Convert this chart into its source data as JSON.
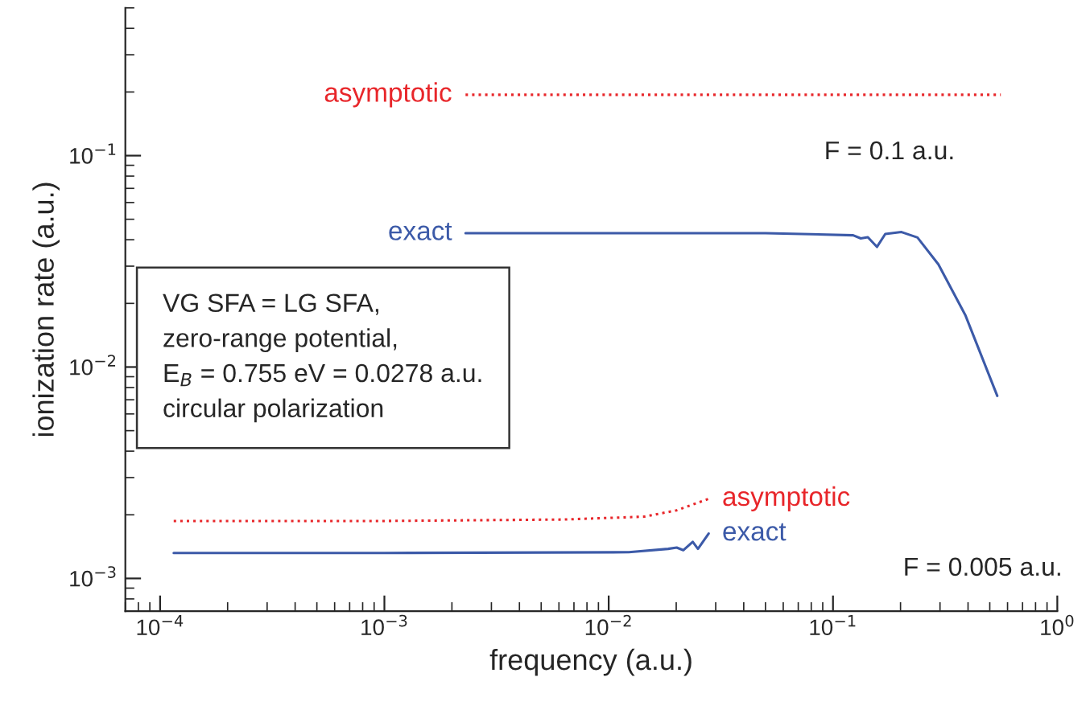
{
  "chart_data": {
    "type": "line",
    "xlabel": "frequency (a.u.)",
    "ylabel": "ionization rate (a.u.)",
    "log": "xy",
    "grid": false,
    "legend": false,
    "xlim": [
      7e-05,
      1
    ],
    "ylim": [
      0.0007,
      0.5
    ],
    "xticks": [
      {
        "value": 0.0001,
        "label": "10$^{−4}$"
      },
      {
        "value": 0.001,
        "label": "10$^{−3}$"
      },
      {
        "value": 0.01,
        "label": "10$^{−2}$"
      },
      {
        "value": 0.1,
        "label": "10$^{−1}$"
      },
      {
        "value": 1,
        "label": "10$^{0}$"
      }
    ],
    "yticks": [
      {
        "value": 0.001,
        "label": "10$^{−3}$"
      },
      {
        "value": 0.01,
        "label": "10$^{−2}$"
      },
      {
        "value": 0.1,
        "label": "10$^{−1}$"
      }
    ],
    "series": [
      {
        "name": "asymptotic",
        "color": "#e8262a",
        "line_style": "dotted",
        "x": [
          0.0023,
          0.01,
          0.1,
          0.56
        ],
        "values": [
          0.194,
          0.194,
          0.194,
          0.194
        ]
      },
      {
        "name": "exact",
        "color": "#3c5aa8",
        "line_style": "solid",
        "x": [
          0.0023,
          0.01,
          0.05,
          0.123,
          0.133,
          0.143,
          0.157,
          0.171,
          0.202,
          0.238,
          0.295,
          0.39,
          0.54
        ],
        "values": [
          0.043,
          0.043,
          0.043,
          0.042,
          0.0406,
          0.0411,
          0.037,
          0.0426,
          0.0435,
          0.041,
          0.0306,
          0.0175,
          0.0073
        ]
      },
      {
        "name": "asymptotic",
        "color": "#e8262a",
        "line_style": "dotted",
        "x": [
          0.000115,
          0.001,
          0.0063,
          0.0144,
          0.0201,
          0.0279
        ],
        "values": [
          0.00187,
          0.00187,
          0.0019,
          0.00196,
          0.0021,
          0.00238
        ]
      },
      {
        "name": "exact",
        "color": "#3c5aa8",
        "line_style": "solid",
        "x": [
          0.000115,
          0.001,
          0.0123,
          0.0184,
          0.0201,
          0.0215,
          0.0237,
          0.025,
          0.0279
        ],
        "values": [
          0.00132,
          0.00132,
          0.00133,
          0.00138,
          0.0014,
          0.00136,
          0.00149,
          0.00138,
          0.00163
        ]
      }
    ],
    "annotations": [
      "F = 0.1 a.u.",
      "F = 0.005 a.u.",
      "VG SFA = LG SFA,\nzero-range potential,\nE$_{B}$ = 0.755 eV = 0.0278 a.u.\ncircular polarization"
    ]
  }
}
